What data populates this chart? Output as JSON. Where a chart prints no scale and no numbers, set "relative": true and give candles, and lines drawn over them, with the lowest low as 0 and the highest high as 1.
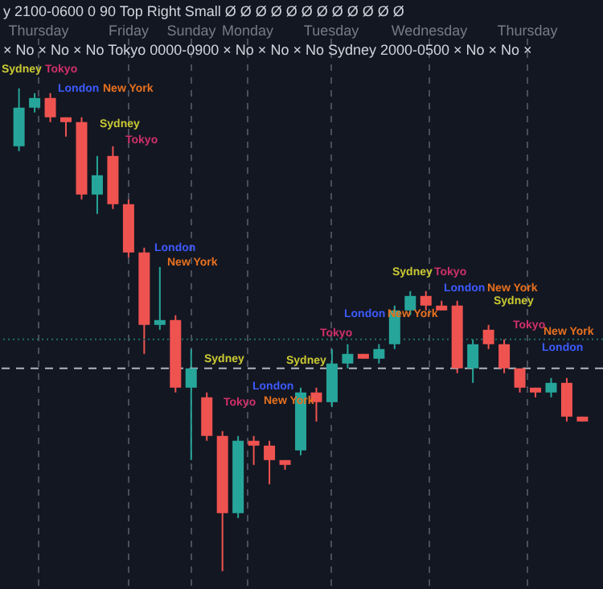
{
  "chart_data": {
    "type": "candlestick",
    "relative": true,
    "categories": [
      null,
      null,
      null,
      null,
      null,
      null,
      null,
      null,
      null,
      null,
      null,
      null,
      null,
      null,
      null,
      null,
      null,
      null,
      null,
      null,
      null,
      null,
      null,
      null,
      null,
      null,
      null,
      null,
      null,
      null,
      null,
      null,
      null,
      null,
      null,
      null,
      null
    ],
    "ohlc": [
      [
        0.88,
        1.0,
        0.87,
        0.96
      ],
      [
        0.96,
        0.99,
        0.95,
        0.98
      ],
      [
        0.98,
        0.99,
        0.93,
        0.94
      ],
      [
        0.94,
        0.94,
        0.9,
        0.93
      ],
      [
        0.93,
        0.94,
        0.77,
        0.78
      ],
      [
        0.78,
        0.86,
        0.74,
        0.82
      ],
      [
        0.86,
        0.88,
        0.75,
        0.76
      ],
      [
        0.76,
        0.77,
        0.65,
        0.66
      ],
      [
        0.66,
        0.67,
        0.45,
        0.51
      ],
      [
        0.51,
        0.63,
        0.5,
        0.52
      ],
      [
        0.52,
        0.53,
        0.37,
        0.38
      ],
      [
        0.38,
        0.46,
        0.23,
        0.42
      ],
      [
        0.36,
        0.37,
        0.27,
        0.28
      ],
      [
        0.28,
        0.29,
        0.0,
        0.12
      ],
      [
        0.12,
        0.28,
        0.11,
        0.27
      ],
      [
        0.27,
        0.28,
        0.22,
        0.26
      ],
      [
        0.26,
        0.27,
        0.18,
        0.23
      ],
      [
        0.23,
        0.23,
        0.21,
        0.22
      ],
      [
        0.25,
        0.38,
        0.24,
        0.37
      ],
      [
        0.37,
        0.38,
        0.31,
        0.35
      ],
      [
        0.35,
        0.46,
        0.34,
        0.43
      ],
      [
        0.43,
        0.47,
        0.42,
        0.45
      ],
      [
        0.45,
        0.45,
        0.44,
        0.44
      ],
      [
        0.44,
        0.47,
        0.43,
        0.46
      ],
      [
        0.47,
        0.55,
        0.46,
        0.54
      ],
      [
        0.54,
        0.58,
        0.53,
        0.57
      ],
      [
        0.57,
        0.58,
        0.54,
        0.55
      ],
      [
        0.55,
        0.56,
        0.54,
        0.54
      ],
      [
        0.55,
        0.56,
        0.41,
        0.42
      ],
      [
        0.42,
        0.48,
        0.39,
        0.47
      ],
      [
        0.5,
        0.51,
        0.46,
        0.47
      ],
      [
        0.47,
        0.48,
        0.41,
        0.42
      ],
      [
        0.42,
        0.42,
        0.37,
        0.38
      ],
      [
        0.38,
        0.38,
        0.36,
        0.37
      ],
      [
        0.37,
        0.4,
        0.36,
        0.39
      ],
      [
        0.39,
        0.4,
        0.31,
        0.32
      ],
      [
        0.32,
        0.32,
        0.31,
        0.31
      ]
    ],
    "colors": [
      "#26a69a",
      "#26a69a",
      "#ef5350",
      "#ef5350",
      "#ef5350",
      "#26a69a",
      "#ef5350",
      "#ef5350",
      "#ef5350",
      "#26a69a",
      "#ef5350",
      "#26a69a",
      "#ef5350",
      "#ef5350",
      "#26a69a",
      "#ef5350",
      "#ef5350",
      "#ef5350",
      "#26a69a",
      "#ef5350",
      "#26a69a",
      "#26a69a",
      "#ef5350",
      "#26a69a",
      "#26a69a",
      "#26a69a",
      "#ef5350",
      "#ef5350",
      "#ef5350",
      "#26a69a",
      "#ef5350",
      "#ef5350",
      "#ef5350",
      "#ef5350",
      "#26a69a",
      "#ef5350",
      "#ef5350"
    ],
    "grid": "x",
    "ref_lines": [
      {
        "axis": "y",
        "value": 0.42,
        "label": null,
        "color": "#b2b5be",
        "line_style": "dashed"
      },
      {
        "axis": "y",
        "value": 0.48,
        "label": null,
        "color": "#1f6f66",
        "line_style": "dotted"
      }
    ],
    "annotations": [
      "y 2100-0600 0 90 Top Right Small Ø Ø Ø Ø Ø Ø Ø Ø Ø Ø Ø Ø",
      "× No × No × No Tokyo 0000-0900 × No × No × No Sydney 2000-0500 × No × No ×",
      "Thursday",
      "Friday",
      "Sunday",
      "Monday",
      "Tuesday",
      "Wednesday",
      "Thursday",
      "Sydney",
      "Tokyo",
      "London",
      "New York",
      "Sydney",
      "Tokyo",
      "London",
      "New York",
      "Sydney",
      "Tokyo",
      "London",
      "New York",
      "Sydney",
      "Tokyo",
      "London",
      "New York",
      "Sydney",
      "Tokyo",
      "London",
      "New York",
      "Sydney",
      "Tokyo",
      "London",
      "New York"
    ]
  }
}
